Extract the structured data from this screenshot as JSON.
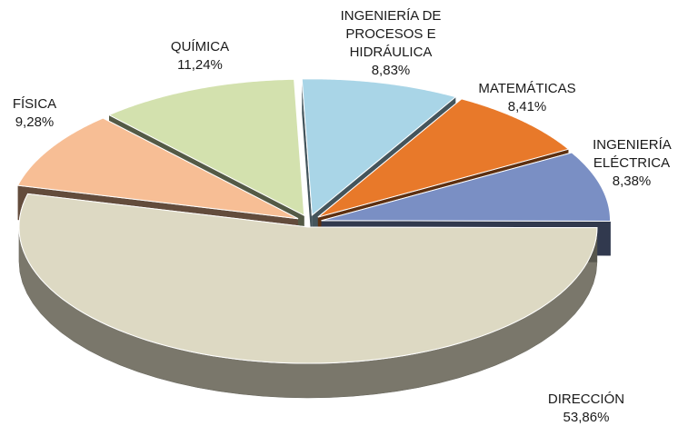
{
  "chart_data": {
    "type": "pie",
    "categories": [
      "INGENIERÍA DE PROCESOS E HIDRÁULICA",
      "MATEMÁTICAS",
      "INGENIERÍA ELÉCTRICA",
      "DIRECCIÓN",
      "FÍSICA",
      "QUÍMICA"
    ],
    "values": [
      8.83,
      8.41,
      8.38,
      53.86,
      9.28,
      11.24
    ],
    "value_labels": [
      "8,83%",
      "8,41%",
      "8,38%",
      "53,86%",
      "9,28%",
      "11,24%"
    ],
    "colors": [
      "#a9d5e7",
      "#e8792a",
      "#7a8fc4",
      "#ddd9c3",
      "#f7be95",
      "#d3e1ae"
    ]
  }
}
